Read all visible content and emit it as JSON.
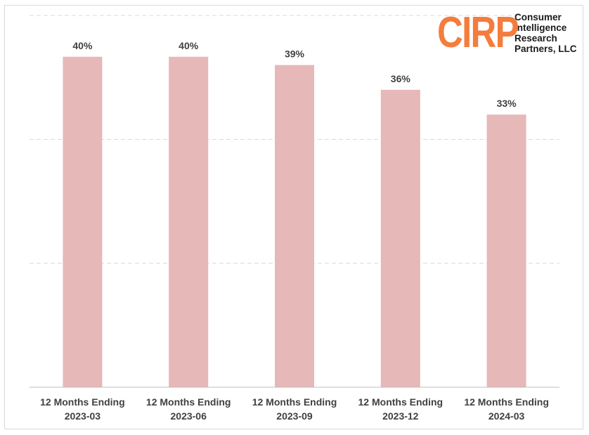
{
  "logo": {
    "mark": "CIRP",
    "lines": [
      "Consumer",
      "Intelligence",
      "Research",
      "Partners, LLC"
    ],
    "mark_color": "#f47c3c"
  },
  "chart_data": {
    "type": "bar",
    "categories": [
      [
        "12 Months Ending",
        "2023-03"
      ],
      [
        "12 Months Ending",
        "2023-06"
      ],
      [
        "12 Months Ending",
        "2023-09"
      ],
      [
        "12 Months Ending",
        "2023-12"
      ],
      [
        "12 Months Ending",
        "2024-03"
      ]
    ],
    "values": [
      40,
      40,
      39,
      36,
      33
    ],
    "value_labels": [
      "40%",
      "40%",
      "39%",
      "36%",
      "33%"
    ],
    "title": "",
    "xlabel": "",
    "ylabel": "",
    "ylim": [
      0,
      45
    ],
    "gridlines": [
      15,
      30,
      45
    ],
    "grid": true,
    "legend": "none",
    "bar_color": "#e6b8b7",
    "grid_color": "#d9d9d9"
  }
}
